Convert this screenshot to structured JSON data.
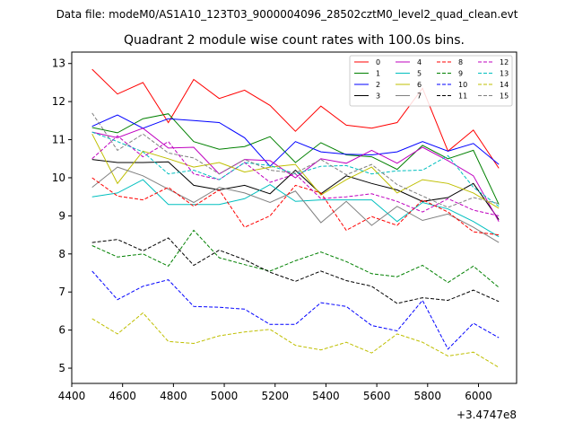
{
  "chart_data": {
    "type": "line",
    "suptitle": "Data file: modeM0/AS1A10_123T03_9000004096_28502cztM0_level2_quad_clean.evt",
    "title": "Quadrant 2 module wise count rates with 100.0s bins.",
    "xlabel": "",
    "ylabel": "",
    "x_offset_label": "+3.4747e8",
    "xlim": [
      4400,
      6150
    ],
    "ylim": [
      4.6,
      13.3
    ],
    "xticks": [
      4400,
      4600,
      4800,
      5000,
      5200,
      5400,
      5600,
      5800,
      6000
    ],
    "yticks": [
      5,
      6,
      7,
      8,
      9,
      10,
      11,
      12,
      13
    ],
    "legend_position": "top-right",
    "grid": false,
    "x": [
      4480,
      4580,
      4680,
      4780,
      4880,
      4980,
      5080,
      5180,
      5280,
      5380,
      5480,
      5580,
      5680,
      5780,
      5880,
      5980,
      6080
    ],
    "series": [
      {
        "name": "0",
        "color": "#ff0000",
        "style": "solid",
        "values": [
          12.85,
          12.2,
          12.5,
          11.45,
          12.58,
          12.08,
          12.3,
          11.9,
          11.22,
          11.88,
          11.38,
          11.3,
          11.45,
          12.35,
          10.7,
          11.25,
          10.25
        ]
      },
      {
        "name": "1",
        "color": "#008000",
        "style": "solid",
        "values": [
          11.32,
          11.18,
          11.55,
          11.68,
          10.95,
          10.75,
          10.82,
          11.08,
          10.4,
          10.92,
          10.6,
          10.55,
          10.22,
          10.85,
          10.5,
          10.72,
          9.3
        ]
      },
      {
        "name": "2",
        "color": "#0000ff",
        "style": "solid",
        "values": [
          11.35,
          11.65,
          11.3,
          11.55,
          11.5,
          11.45,
          11.05,
          10.3,
          10.95,
          10.68,
          10.62,
          10.6,
          10.68,
          10.95,
          10.7,
          10.9,
          10.35
        ]
      },
      {
        "name": "3",
        "color": "#000000",
        "style": "solid",
        "values": [
          10.48,
          10.4,
          10.4,
          10.42,
          9.8,
          9.68,
          9.8,
          9.58,
          10.2,
          9.58,
          10.05,
          9.85,
          9.68,
          9.38,
          9.48,
          9.85,
          8.9
        ]
      },
      {
        "name": "4",
        "color": "#bf00bf",
        "style": "solid",
        "values": [
          11.2,
          11.05,
          11.3,
          10.78,
          10.8,
          10.1,
          10.48,
          10.45,
          10.0,
          10.5,
          10.38,
          10.72,
          10.38,
          10.8,
          10.45,
          10.05,
          8.85
        ]
      },
      {
        "name": "5",
        "color": "#00bfbf",
        "style": "solid",
        "values": [
          9.5,
          9.6,
          9.95,
          9.3,
          9.3,
          9.3,
          9.45,
          9.82,
          9.38,
          9.42,
          9.42,
          9.42,
          8.85,
          9.35,
          9.18,
          8.85,
          8.45
        ]
      },
      {
        "name": "6",
        "color": "#bfbf00",
        "style": "solid",
        "values": [
          11.15,
          9.85,
          10.7,
          10.5,
          10.28,
          10.4,
          10.15,
          10.28,
          10.35,
          9.55,
          9.95,
          10.28,
          9.6,
          9.95,
          9.85,
          9.6,
          9.2
        ]
      },
      {
        "name": "7",
        "color": "#808080",
        "style": "solid",
        "values": [
          9.75,
          10.28,
          10.05,
          9.7,
          9.35,
          9.75,
          9.6,
          9.35,
          9.65,
          8.82,
          9.38,
          8.75,
          9.25,
          8.88,
          9.05,
          8.7,
          8.3
        ]
      },
      {
        "name": "8",
        "color": "#ff0000",
        "style": "dashed",
        "values": [
          10.0,
          9.52,
          9.42,
          9.75,
          9.25,
          9.68,
          8.7,
          9.0,
          9.8,
          9.6,
          8.62,
          8.98,
          8.75,
          9.42,
          9.1,
          8.58,
          8.5
        ]
      },
      {
        "name": "9",
        "color": "#008000",
        "style": "dashed",
        "values": [
          8.22,
          7.92,
          8.0,
          7.68,
          8.62,
          7.9,
          7.72,
          7.55,
          7.82,
          8.05,
          7.8,
          7.48,
          7.4,
          7.7,
          7.25,
          7.68,
          7.12
        ]
      },
      {
        "name": "10",
        "color": "#0000ff",
        "style": "dashed",
        "values": [
          7.55,
          6.8,
          7.15,
          7.32,
          6.62,
          6.6,
          6.55,
          6.15,
          6.15,
          6.72,
          6.62,
          6.12,
          5.98,
          6.78,
          5.5,
          6.18,
          5.8
        ]
      },
      {
        "name": "11",
        "color": "#000000",
        "style": "dashed",
        "values": [
          8.3,
          8.38,
          8.08,
          8.42,
          7.7,
          8.1,
          7.85,
          7.52,
          7.28,
          7.55,
          7.3,
          7.15,
          6.7,
          6.85,
          6.78,
          7.05,
          6.75
        ]
      },
      {
        "name": "12",
        "color": "#bf00bf",
        "style": "dashed",
        "values": [
          10.5,
          11.1,
          10.55,
          10.95,
          10.1,
          9.95,
          10.4,
          9.88,
          10.1,
          9.45,
          9.5,
          9.58,
          9.38,
          9.1,
          9.45,
          9.15,
          9.0
        ]
      },
      {
        "name": "13",
        "color": "#00bfbf",
        "style": "dashed",
        "values": [
          11.2,
          10.95,
          10.68,
          10.1,
          10.2,
          9.95,
          10.4,
          10.32,
          10.1,
          10.3,
          10.32,
          10.1,
          10.18,
          10.2,
          10.58,
          9.75,
          9.25
        ]
      },
      {
        "name": "14",
        "color": "#bfbf00",
        "style": "dashed",
        "values": [
          6.3,
          5.9,
          6.45,
          5.7,
          5.65,
          5.85,
          5.95,
          6.02,
          5.6,
          5.48,
          5.68,
          5.4,
          5.9,
          5.68,
          5.32,
          5.42,
          5.02
        ]
      },
      {
        "name": "15",
        "color": "#808080",
        "style": "dashed",
        "values": [
          11.7,
          10.72,
          11.15,
          10.65,
          10.52,
          10.1,
          10.48,
          10.2,
          10.12,
          10.48,
          10.08,
          10.35,
          9.82,
          9.52,
          9.22,
          9.48,
          9.32
        ]
      }
    ]
  }
}
